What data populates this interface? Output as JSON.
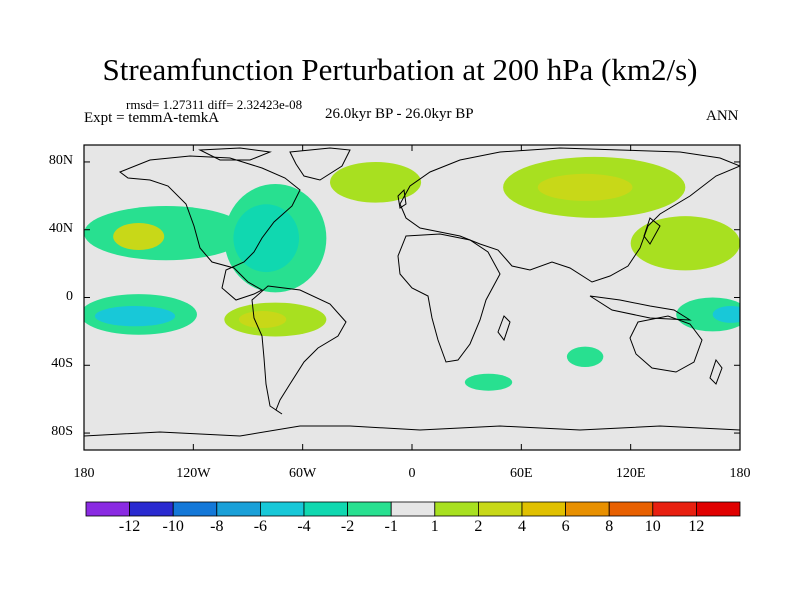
{
  "title": "Streamfunction Perturbation at 200 hPa (km2/s)",
  "stats": "rmsd= 1.27311 diff= 2.32423e-08",
  "experiment": "Expt = temmA-temkA",
  "period": "26.0kyr BP - 26.0kyr BP",
  "season": "ANN",
  "map": {
    "projection": "cylindrical equidistant",
    "lon_range": [
      -180,
      180
    ],
    "lat_range": [
      -90,
      90
    ],
    "lat_ticks": [
      "80N",
      "40N",
      "0",
      "40S",
      "80S"
    ],
    "lat_tick_values": [
      80,
      40,
      0,
      -40,
      -80
    ],
    "lon_ticks": [
      "180",
      "120W",
      "60W",
      "0",
      "60E",
      "120E",
      "180"
    ],
    "lon_tick_values": [
      -180,
      -120,
      -60,
      0,
      60,
      120,
      180
    ],
    "background_color": "#e6e6e6",
    "coastline_color": "#000000"
  },
  "colorbar": {
    "labels": [
      "-12",
      "-10",
      "-8",
      "-6",
      "-4",
      "-2",
      "-1",
      "1",
      "2",
      "4",
      "6",
      "8",
      "10",
      "12"
    ],
    "colors": [
      "#8a2be2",
      "#2a2ad0",
      "#1478d8",
      "#1aa0d8",
      "#18c8d8",
      "#10d8b0",
      "#28e090",
      "#e6e6e6",
      "#a8e020",
      "#c8d818",
      "#e0c000",
      "#e89000",
      "#e86000",
      "#e82010",
      "#e00000"
    ]
  },
  "regions": [
    {
      "name": "N Pacific gyre",
      "color": "#28e090",
      "lon": -135,
      "lat": 38,
      "rx": 45,
      "ry": 16
    },
    {
      "name": "N Pacific core",
      "color": "#c8d818",
      "lon": -150,
      "lat": 36,
      "rx": 14,
      "ry": 8
    },
    {
      "name": "North America low",
      "color": "#28e090",
      "lon": -75,
      "lat": 35,
      "rx": 28,
      "ry": 32
    },
    {
      "name": "North America core",
      "color": "#10d8b0",
      "lon": -80,
      "lat": 35,
      "rx": 18,
      "ry": 20
    },
    {
      "name": "N Atlantic high",
      "color": "#a8e020",
      "lon": -20,
      "lat": 68,
      "rx": 25,
      "ry": 12
    },
    {
      "name": "Siberian high",
      "color": "#a8e020",
      "lon": 100,
      "lat": 65,
      "rx": 50,
      "ry": 18
    },
    {
      "name": "Siberian core",
      "color": "#c8d818",
      "lon": 95,
      "lat": 65,
      "rx": 26,
      "ry": 8
    },
    {
      "name": "W Pacific high",
      "color": "#a8e020",
      "lon": 150,
      "lat": 32,
      "rx": 30,
      "ry": 16
    },
    {
      "name": "S Pacific low",
      "color": "#28e090",
      "lon": -150,
      "lat": -10,
      "rx": 32,
      "ry": 12
    },
    {
      "name": "S Pacific core",
      "color": "#18c8d8",
      "lon": -152,
      "lat": -11,
      "rx": 22,
      "ry": 6
    },
    {
      "name": "S Atlantic high",
      "color": "#a8e020",
      "lon": -75,
      "lat": -13,
      "rx": 28,
      "ry": 10
    },
    {
      "name": "S Atlantic core",
      "color": "#c8d818",
      "lon": -82,
      "lat": -13,
      "rx": 13,
      "ry": 5
    },
    {
      "name": "Southern Ocean low",
      "color": "#28e090",
      "lon": 42,
      "lat": -50,
      "rx": 13,
      "ry": 5
    },
    {
      "name": "SE Indian low",
      "color": "#28e090",
      "lon": 95,
      "lat": -35,
      "rx": 10,
      "ry": 6
    },
    {
      "name": "Australia low",
      "color": "#28e090",
      "lon": 165,
      "lat": -10,
      "rx": 20,
      "ry": 10
    },
    {
      "name": "Australia core",
      "color": "#18c8d8",
      "lon": 175,
      "lat": -10,
      "rx": 10,
      "ry": 5
    }
  ]
}
